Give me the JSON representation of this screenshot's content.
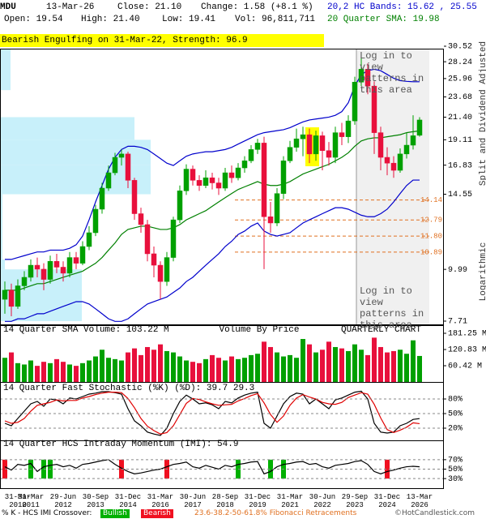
{
  "header": {
    "symbol": "MDU",
    "date": "13-Mar-26",
    "close": "Close: 21.10",
    "change": "Change: 1.58 (+8.1 %)",
    "open": "Open: 19.54",
    "high": "High: 21.40",
    "low": "Low: 19.41",
    "volume": "Vol: 96,811,711",
    "bands": "20,2 HC Bands: 15.62 , 25.55",
    "sma": "20 Quarter SMA: 19.98",
    "pattern": "Bearish Engulfing on 31-Mar-22, Strength: 96.9",
    "side_note": "Split and Dividend Adjusted",
    "scale_note": "Logarithmic",
    "overlay_text": "Log in to view patterns in this area"
  },
  "chart_data": [
    {
      "type": "candlestick",
      "log_scale": true,
      "categories": [
        "31-Mar 2010",
        null,
        null,
        null,
        "31-Mar 2011",
        null,
        null,
        null,
        null,
        "29-Jun 2012",
        null,
        null,
        null,
        null,
        "30-Sep 2013",
        null,
        null,
        null,
        null,
        "31-Dec 2014",
        null,
        null,
        null,
        null,
        "31-Mar 2016",
        null,
        null,
        null,
        null,
        "30-Jun 2017",
        null,
        null,
        null,
        null,
        "28-Sep 2018",
        null,
        null,
        null,
        null,
        "31-Dec 2019",
        null,
        null,
        null,
        null,
        "31-Mar 2021",
        null,
        null,
        null,
        null,
        "30-Jun 2022",
        null,
        null,
        null,
        null,
        "29-Sep 2023",
        null,
        null,
        null,
        null,
        "31-Dec 2024",
        null,
        null,
        null,
        null,
        "13-Mar 2026"
      ],
      "open": [
        8.6,
        9.0,
        8.3,
        9.2,
        9.6,
        10.2,
        10.0,
        9.5,
        10.4,
        10.1,
        9.8,
        10.6,
        10.3,
        11.2,
        12.0,
        13.5,
        15.0,
        16.2,
        17.5,
        17.8,
        15.6,
        13.2,
        12.5,
        10.8,
        10.2,
        9.4,
        10.6,
        12.8,
        14.8,
        16.5,
        15.6,
        15.2,
        15.8,
        15.4,
        15.0,
        16.2,
        15.8,
        16.6,
        17.2,
        18.2,
        18.8,
        13.0,
        12.6,
        14.6,
        17.2,
        18.4,
        19.2,
        19.6,
        17.8,
        19.5,
        18.1,
        17.5,
        19.8,
        19.4,
        21.0,
        25.5,
        27.2,
        25.0,
        19.8,
        17.5,
        17.0,
        16.4,
        17.8,
        18.6,
        19.54
      ],
      "high": [
        9.4,
        9.3,
        9.5,
        9.9,
        10.5,
        10.6,
        10.3,
        10.7,
        10.8,
        10.4,
        10.9,
        10.9,
        11.5,
        12.4,
        13.8,
        15.4,
        16.8,
        17.9,
        18.2,
        18.0,
        15.8,
        13.6,
        12.8,
        11.2,
        10.4,
        10.9,
        13.0,
        15.2,
        16.9,
        16.8,
        16.0,
        16.4,
        16.2,
        15.8,
        16.6,
        16.8,
        17.0,
        17.6,
        18.6,
        19.2,
        19.4,
        14.0,
        15.0,
        17.6,
        19.0,
        20.2,
        20.4,
        20.2,
        20.0,
        19.9,
        18.9,
        20.4,
        20.8,
        21.6,
        26.2,
        29.0,
        28.0,
        25.6,
        20.4,
        18.4,
        17.6,
        18.3,
        19.8,
        21.6,
        21.4
      ],
      "low": [
        8.0,
        7.9,
        8.2,
        9.0,
        9.4,
        9.6,
        9.0,
        9.3,
        9.8,
        9.4,
        9.6,
        10.0,
        10.2,
        11.0,
        11.8,
        13.2,
        14.8,
        16.0,
        16.8,
        15.0,
        12.8,
        12.0,
        10.4,
        9.6,
        8.6,
        9.2,
        10.4,
        12.6,
        14.5,
        15.2,
        14.8,
        15.0,
        14.9,
        14.5,
        14.8,
        15.4,
        15.6,
        16.2,
        17.0,
        17.8,
        10.0,
        12.0,
        12.4,
        14.2,
        17.0,
        18.0,
        17.6,
        17.0,
        17.2,
        16.4,
        16.8,
        17.0,
        18.6,
        18.8,
        20.6,
        25.0,
        24.0,
        17.8,
        16.4,
        16.0,
        15.8,
        16.2,
        17.4,
        18.2,
        19.41
      ],
      "close": [
        9.0,
        8.3,
        9.2,
        9.6,
        10.2,
        10.0,
        9.5,
        10.4,
        10.1,
        9.8,
        10.6,
        10.3,
        11.2,
        12.0,
        13.5,
        15.0,
        16.2,
        17.5,
        17.8,
        15.6,
        13.2,
        12.5,
        10.8,
        10.2,
        9.4,
        10.6,
        12.8,
        14.8,
        16.5,
        15.6,
        15.2,
        15.8,
        15.4,
        15.0,
        16.2,
        15.8,
        16.6,
        17.2,
        18.2,
        18.8,
        13.0,
        12.6,
        14.6,
        17.2,
        18.4,
        19.2,
        19.6,
        17.8,
        19.5,
        18.1,
        17.5,
        19.8,
        19.4,
        21.0,
        25.5,
        27.2,
        25.0,
        19.8,
        17.5,
        17.0,
        16.4,
        17.8,
        18.6,
        19.5,
        21.1
      ],
      "up_color": "#00a000",
      "down_color": "#e8103c",
      "series": [
        {
          "color": "#0000cc",
          "values": [
            10.5,
            10.5,
            10.6,
            10.7,
            10.8,
            10.9,
            10.9,
            11.0,
            11.0,
            11.0,
            11.1,
            11.3,
            11.8,
            12.8,
            14.0,
            15.2,
            16.5,
            17.5,
            18.2,
            18.5,
            18.5,
            18.4,
            18.2,
            17.8,
            17.4,
            17.0,
            16.8,
            17.2,
            17.6,
            17.8,
            17.9,
            18.0,
            18.0,
            18.1,
            18.2,
            18.4,
            18.7,
            19.0,
            19.3,
            19.6,
            19.8,
            19.9,
            20.0,
            20.1,
            20.3,
            20.6,
            20.9,
            21.1,
            21.2,
            21.3,
            21.4,
            21.6,
            22.0,
            23.0,
            25.0,
            26.5,
            27.0,
            27.2,
            27.0,
            26.5,
            26.0,
            25.7,
            25.6,
            25.55,
            25.55
          ]
        },
        {
          "color": "#008000",
          "values": [
            9.0,
            9.0,
            9.0,
            9.1,
            9.2,
            9.3,
            9.3,
            9.4,
            9.5,
            9.6,
            9.7,
            9.8,
            9.9,
            10.1,
            10.3,
            10.6,
            11.0,
            11.4,
            11.9,
            12.2,
            12.3,
            12.4,
            12.4,
            12.3,
            12.2,
            12.2,
            12.3,
            12.5,
            12.8,
            13.0,
            13.2,
            13.4,
            13.7,
            14.0,
            14.3,
            14.6,
            14.9,
            15.1,
            15.3,
            15.5,
            15.3,
            15.2,
            15.2,
            15.3,
            15.5,
            15.8,
            16.1,
            16.3,
            16.5,
            16.7,
            16.9,
            17.2,
            17.5,
            17.9,
            18.5,
            19.0,
            19.2,
            19.3,
            19.3,
            19.4,
            19.5,
            19.6,
            19.8,
            19.9,
            19.98
          ]
        },
        {
          "color": "#0000cc",
          "values": [
            7.7,
            7.7,
            7.8,
            7.8,
            7.9,
            8.0,
            8.0,
            8.1,
            8.2,
            8.3,
            8.4,
            8.5,
            8.5,
            8.4,
            8.2,
            8.0,
            7.8,
            7.7,
            7.7,
            7.8,
            8.0,
            8.2,
            8.4,
            8.5,
            8.6,
            8.7,
            8.9,
            9.1,
            9.4,
            9.6,
            9.9,
            10.2,
            10.5,
            10.8,
            11.2,
            11.5,
            11.9,
            12.1,
            12.4,
            12.6,
            12.1,
            11.9,
            11.8,
            11.9,
            12.0,
            12.3,
            12.6,
            12.8,
            13.0,
            13.2,
            13.4,
            13.6,
            13.6,
            13.5,
            13.3,
            13.1,
            13.0,
            13.0,
            13.2,
            13.5,
            14.0,
            14.6,
            15.2,
            15.62,
            15.62
          ]
        }
      ],
      "ylim": [
        7.71,
        30.52
      ],
      "yticks": [
        30.52,
        28.24,
        25.96,
        23.68,
        {
          "value": 21.4,
          "label": "21.40"
        },
        19.11,
        16.83,
        14.55,
        9.99,
        7.71
      ],
      "levels": [
        14.14,
        12.79,
        {
          "value": 11.8,
          "label": "11.80"
        },
        10.89
      ],
      "level_color": "#e07020",
      "volume_by_price": {
        "bins": [
          7.71,
          9.99,
          10.5,
          12.6,
          14.55,
          16.83,
          19.11,
          21.4,
          24.5,
          30.52
        ],
        "values": [
          100,
          5,
          2,
          2,
          185,
          185,
          165,
          0,
          12
        ],
        "xlim": [
          0,
          200
        ],
        "color": "#c8f0fa"
      }
    },
    {
      "type": "bar",
      "title": "14 Quarter SMA Volume: 103.22 M",
      "annotations": [
        "Volume By Price",
        "QUARTERLY CHART"
      ],
      "values": [
        90,
        110,
        70,
        65,
        80,
        60,
        75,
        70,
        85,
        75,
        65,
        60,
        70,
        80,
        95,
        120,
        90,
        85,
        80,
        110,
        125,
        100,
        130,
        120,
        140,
        115,
        110,
        95,
        80,
        75,
        70,
        85,
        100,
        90,
        80,
        95,
        85,
        90,
        100,
        105,
        150,
        130,
        110,
        95,
        100,
        90,
        160,
        140,
        110,
        120,
        150,
        130,
        125,
        115,
        140,
        120,
        100,
        165,
        130,
        110,
        115,
        120,
        105,
        155,
        96.81
      ],
      "ylim": [
        0,
        181.25
      ],
      "yticks": [
        {
          "value": 181.25,
          "label": "181.25 M"
        },
        {
          "value": 120.83,
          "label": "120.83 M"
        },
        {
          "value": 60.42,
          "label": "60.42 M"
        }
      ]
    },
    {
      "type": "line",
      "title": "14 Quarter Fast Stochastic (%K) (%D): 39.7  29.3",
      "series": [
        {
          "color": "#000000",
          "values": [
            30,
            25,
            40,
            55,
            70,
            75,
            65,
            80,
            78,
            70,
            82,
            80,
            85,
            90,
            92,
            95,
            95,
            93,
            90,
            60,
            35,
            25,
            12,
            8,
            5,
            20,
            50,
            75,
            88,
            80,
            70,
            72,
            68,
            60,
            75,
            72,
            82,
            88,
            92,
            94,
            30,
            20,
            45,
            70,
            85,
            92,
            90,
            70,
            80,
            70,
            60,
            78,
            82,
            88,
            94,
            96,
            80,
            30,
            12,
            10,
            12,
            25,
            30,
            38,
            39.7
          ]
        },
        {
          "color": "#e00000",
          "values": [
            35,
            30,
            32,
            40,
            55,
            67,
            70,
            73,
            78,
            76,
            77,
            77,
            82,
            85,
            89,
            92,
            94,
            94,
            93,
            81,
            62,
            40,
            24,
            15,
            8,
            11,
            25,
            48,
            71,
            81,
            79,
            74,
            70,
            67,
            68,
            69,
            76,
            81,
            87,
            91,
            72,
            48,
            32,
            45,
            67,
            82,
            89,
            84,
            80,
            73,
            70,
            69,
            73,
            83,
            88,
            93,
            90,
            69,
            41,
            17,
            11,
            16,
            22,
            31,
            29.3
          ]
        }
      ],
      "ylim": [
        0,
        100
      ],
      "yticks": [
        {
          "value": 80,
          "label": "80%"
        },
        {
          "value": 50,
          "label": "50%"
        },
        {
          "value": 20,
          "label": "20%"
        }
      ]
    },
    {
      "type": "line",
      "title": "14 Quarter HCS Intraday Momentum (IMI): 54.9",
      "series": [
        {
          "color": "#000000",
          "values": [
            55,
            48,
            60,
            58,
            62,
            45,
            55,
            58,
            60,
            55,
            58,
            52,
            60,
            62,
            65,
            68,
            70,
            60,
            52,
            45,
            40,
            42,
            45,
            48,
            50,
            55,
            60,
            62,
            65,
            55,
            52,
            58,
            54,
            50,
            58,
            55,
            60,
            62,
            65,
            66,
            40,
            45,
            55,
            60,
            62,
            65,
            66,
            60,
            62,
            55,
            52,
            58,
            60,
            62,
            66,
            68,
            60,
            45,
            40,
            45,
            48,
            52,
            55,
            56,
            54.9
          ]
        }
      ],
      "bullish": [
        4,
        6,
        7,
        36,
        41,
        43
      ],
      "bearish": [
        0,
        18,
        25,
        59
      ],
      "bullish_color": "#00b000",
      "bearish_color": "#f01020",
      "ylim": [
        20,
        80
      ],
      "yticks": [
        {
          "value": 70,
          "label": "70%"
        },
        {
          "value": 50,
          "label": "50%"
        },
        {
          "value": 30,
          "label": "30%"
        }
      ]
    }
  ],
  "footer": {
    "crossover": "% K - HCS IMI Crossover:",
    "bullish": "Bullish",
    "bearish": "Bearish",
    "fibonacci": "23.6-38.2-50-61.8% Fibonacci Retracements",
    "copyright": "©HotCandlestick.com"
  }
}
